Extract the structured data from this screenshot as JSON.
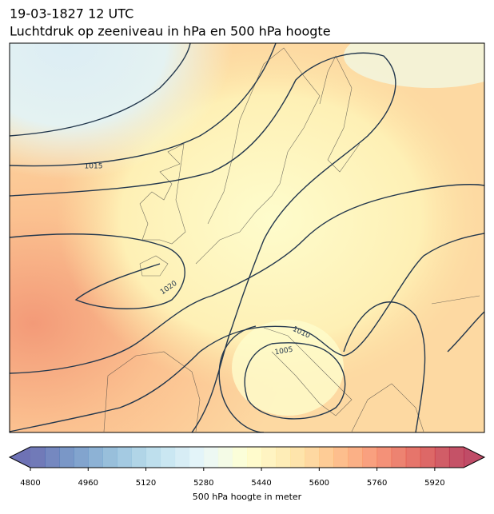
{
  "header": {
    "date": "19-03-1827 12 UTC",
    "title": "Luchtdruk op zeeniveau in hPa en 500 hPa hoogte"
  },
  "map": {
    "isobar_labels": [
      1015,
      1020,
      1010,
      1005
    ]
  },
  "colorbar": {
    "lim": [
      4800,
      6000
    ],
    "ticks": [
      4800,
      4960,
      5120,
      5280,
      5440,
      5600,
      5760,
      5920
    ],
    "label": "500 hPa hoogte in meter",
    "cmap": [
      "#313695",
      "#4575b4",
      "#74add1",
      "#abd9e9",
      "#e0f3f8",
      "#ffffbf",
      "#fee090",
      "#fdae61",
      "#f46d43",
      "#d73027",
      "#a50026"
    ]
  }
}
